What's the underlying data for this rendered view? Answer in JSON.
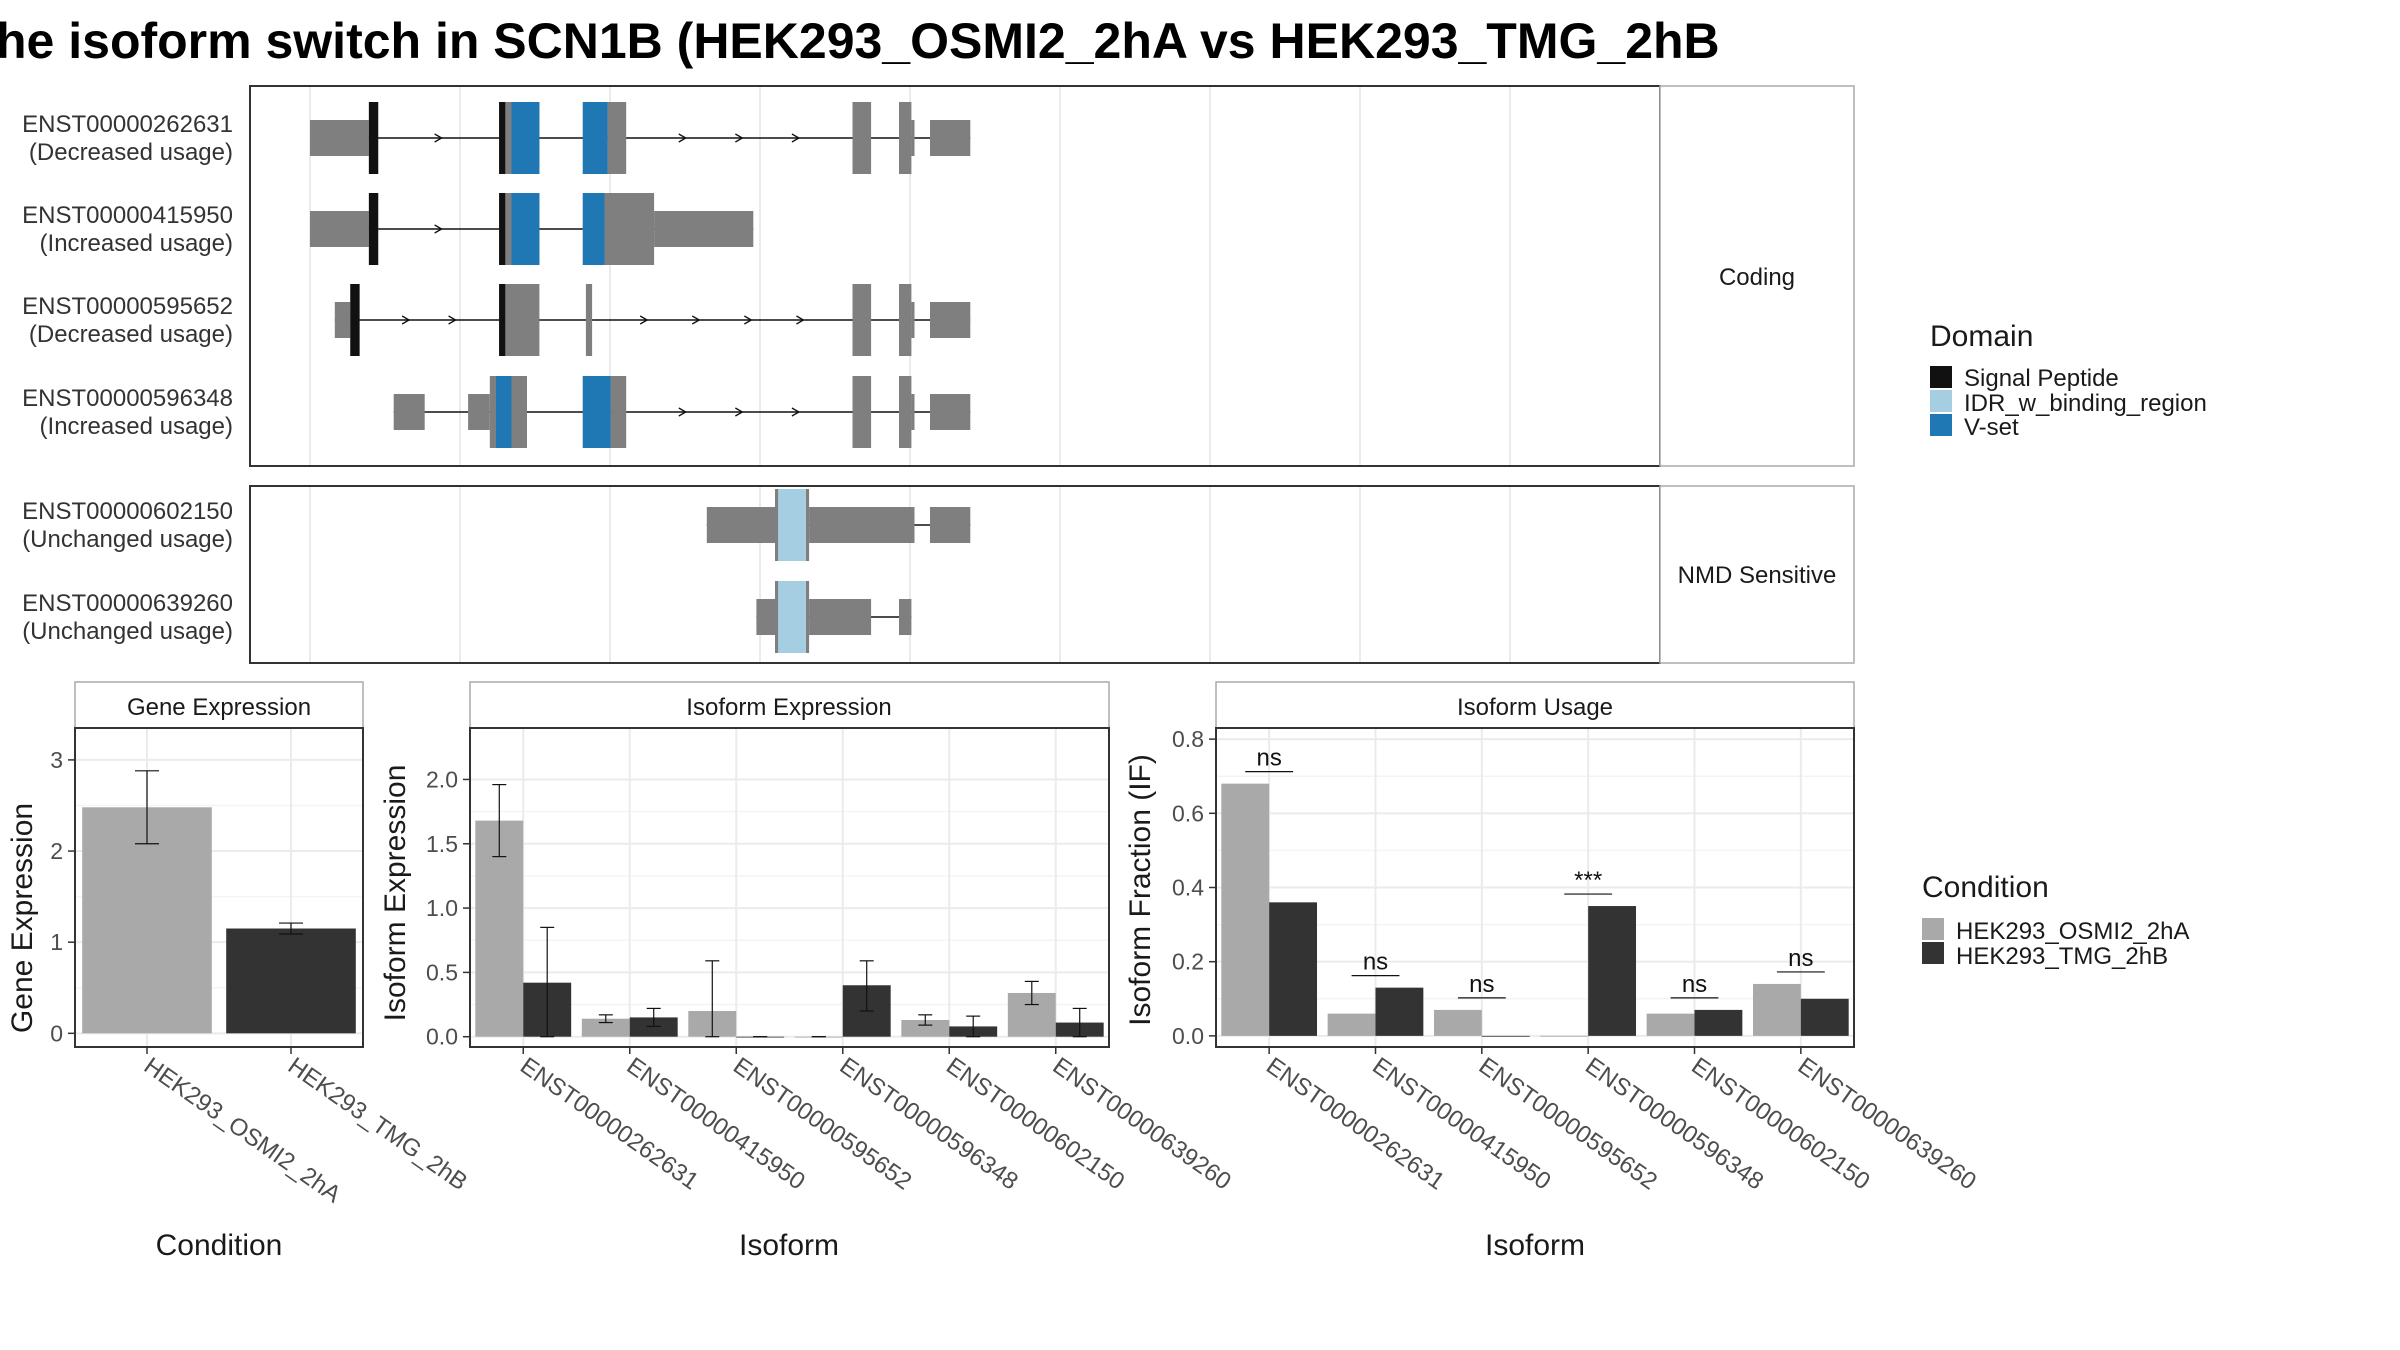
{
  "title": "he isoform switch in SCN1B (HEK293_OSMI2_2hA vs HEK293_TMG_2hB",
  "colors": {
    "exon": "#7f7f7f",
    "signal_peptide": "#111111",
    "idr": "#a6cee3",
    "vset": "#1f78b4",
    "cond_a": "#a9a9a9",
    "cond_b": "#333333"
  },
  "legend_domain": {
    "title": "Domain",
    "items": [
      {
        "label": "Signal Peptide",
        "color": "#111111"
      },
      {
        "label": "IDR_w_binding_region",
        "color": "#a6cee3"
      },
      {
        "label": "V-set",
        "color": "#1f78b4"
      }
    ]
  },
  "legend_condition": {
    "title": "Condition",
    "items": [
      {
        "label": "HEK293_OSMI2_2hA",
        "color": "#a9a9a9"
      },
      {
        "label": "HEK293_TMG_2hB",
        "color": "#333333"
      }
    ]
  },
  "transcript_panel": {
    "groups": [
      {
        "label": "Coding",
        "transcripts": [
          {
            "id": "ENST00000262631",
            "usage": "(Decreased usage)",
            "exons": [
              [
                0,
                19,
                "t"
              ],
              [
                19,
                22,
                "c"
              ],
              [
                61,
                63,
                "c"
              ],
              [
                63,
                65,
                "c"
              ],
              [
                65,
                74,
                "c"
              ],
              [
                88,
                96,
                "c"
              ],
              [
                96,
                102,
                "c"
              ],
              [
                175,
                181,
                "c"
              ],
              [
                190,
                194,
                "c"
              ],
              [
                194,
                195,
                "t"
              ],
              [
                200,
                213,
                "t"
              ]
            ],
            "domains": [
              [
                19,
                22,
                "sp"
              ],
              [
                61,
                63,
                "sp"
              ],
              [
                65,
                74,
                "vs"
              ],
              [
                88,
                96,
                "vs"
              ]
            ]
          },
          {
            "id": "ENST00000415950",
            "usage": "(Increased usage)",
            "exons": [
              [
                0,
                19,
                "t"
              ],
              [
                19,
                22,
                "c"
              ],
              [
                61,
                63,
                "c"
              ],
              [
                63,
                65,
                "c"
              ],
              [
                65,
                74,
                "c"
              ],
              [
                88,
                95,
                "c"
              ],
              [
                95,
                111,
                "c"
              ],
              [
                111,
                143,
                "t"
              ]
            ],
            "domains": [
              [
                19,
                22,
                "sp"
              ],
              [
                61,
                63,
                "sp"
              ],
              [
                65,
                74,
                "vs"
              ],
              [
                88,
                95,
                "vs"
              ]
            ]
          },
          {
            "id": "ENST00000595652",
            "usage": "(Decreased usage)",
            "exons": [
              [
                8,
                13,
                "t"
              ],
              [
                13,
                16,
                "c"
              ],
              [
                61,
                63,
                "c"
              ],
              [
                63,
                74,
                "c"
              ],
              [
                89,
                91,
                "c"
              ],
              [
                175,
                181,
                "c"
              ],
              [
                190,
                194,
                "c"
              ],
              [
                194,
                195,
                "t"
              ],
              [
                200,
                213,
                "t"
              ]
            ],
            "domains": [
              [
                13,
                16,
                "sp"
              ],
              [
                61,
                63,
                "sp"
              ]
            ]
          },
          {
            "id": "ENST00000596348",
            "usage": "(Increased usage)",
            "exons": [
              [
                27,
                37,
                "t"
              ],
              [
                51,
                58,
                "t"
              ],
              [
                58,
                65,
                "c"
              ],
              [
                65,
                70,
                "c"
              ],
              [
                88,
                97,
                "c"
              ],
              [
                97,
                102,
                "c"
              ],
              [
                175,
                181,
                "c"
              ],
              [
                190,
                194,
                "c"
              ],
              [
                194,
                195,
                "t"
              ],
              [
                200,
                213,
                "t"
              ]
            ],
            "domains": [
              [
                60,
                65,
                "vs"
              ],
              [
                88,
                97,
                "vs"
              ]
            ]
          }
        ]
      },
      {
        "label": "NMD Sensitive",
        "transcripts": [
          {
            "id": "ENST00000602150",
            "usage": "(Unchanged usage)",
            "exons": [
              [
                128,
                150,
                "t"
              ],
              [
                150,
                161,
                "c"
              ],
              [
                161,
                195,
                "t"
              ],
              [
                200,
                213,
                "t"
              ]
            ],
            "domains": [
              [
                151,
                160,
                "idr"
              ]
            ]
          },
          {
            "id": "ENST00000639260",
            "usage": "(Unchanged usage)",
            "exons": [
              [
                144,
                150,
                "t"
              ],
              [
                150,
                161,
                "c"
              ],
              [
                161,
                181,
                "t"
              ],
              [
                190,
                194,
                "t"
              ]
            ],
            "domains": [
              [
                151,
                160,
                "idr"
              ]
            ]
          }
        ]
      }
    ]
  },
  "chart_data": [
    {
      "type": "bar",
      "panel_title": "Gene Expression",
      "xlabel": "Condition",
      "ylabel": "Gene Expression",
      "ylim": [
        -0.15,
        3.35
      ],
      "yticks": [
        0,
        1,
        2,
        3
      ],
      "categories": [
        "HEK293_OSMI2_2hA",
        "HEK293_TMG_2hB"
      ],
      "values": [
        2.48,
        1.15
      ],
      "errors": [
        [
          2.08,
          2.88
        ],
        [
          1.09,
          1.21
        ]
      ]
    },
    {
      "type": "bar",
      "panel_title": "Isoform Expression",
      "xlabel": "Isoform",
      "ylabel": "Isoform Expression",
      "ylim": [
        -0.08,
        2.4
      ],
      "yticks": [
        0.0,
        0.5,
        1.0,
        1.5,
        2.0
      ],
      "categories": [
        "ENST00000262631",
        "ENST00000415950",
        "ENST00000595652",
        "ENST00000596348",
        "ENST00000602150",
        "ENST00000639260"
      ],
      "series": [
        {
          "name": "HEK293_OSMI2_2hA",
          "values": [
            1.68,
            0.14,
            0.2,
            0.0,
            0.13,
            0.34
          ],
          "errors": [
            [
              1.4,
              1.96
            ],
            [
              0.11,
              0.17
            ],
            [
              0.0,
              0.59
            ],
            [
              0.0,
              0.0
            ],
            [
              0.09,
              0.17
            ],
            [
              0.25,
              0.43
            ]
          ]
        },
        {
          "name": "HEK293_TMG_2hB",
          "values": [
            0.42,
            0.15,
            0.0,
            0.4,
            0.08,
            0.11
          ],
          "errors": [
            [
              0.0,
              0.85
            ],
            [
              0.08,
              0.22
            ],
            [
              0.0,
              0.0
            ],
            [
              0.2,
              0.59
            ],
            [
              0.0,
              0.16
            ],
            [
              0.0,
              0.22
            ]
          ]
        }
      ]
    },
    {
      "type": "bar",
      "panel_title": "Isoform Usage",
      "xlabel": "Isoform",
      "ylabel": "Isoform Fraction (IF)",
      "ylim": [
        -0.03,
        0.83
      ],
      "yticks": [
        0.0,
        0.2,
        0.4,
        0.6,
        0.8
      ],
      "categories": [
        "ENST00000262631",
        "ENST00000415950",
        "ENST00000595652",
        "ENST00000596348",
        "ENST00000602150",
        "ENST00000639260"
      ],
      "series": [
        {
          "name": "HEK293_OSMI2_2hA",
          "values": [
            0.68,
            0.06,
            0.07,
            0.0,
            0.06,
            0.14
          ]
        },
        {
          "name": "HEK293_TMG_2hB",
          "values": [
            0.36,
            0.13,
            0.0,
            0.35,
            0.07,
            0.1
          ]
        }
      ],
      "significance": [
        "ns",
        "ns",
        "ns",
        "***",
        "ns",
        "ns"
      ]
    }
  ]
}
